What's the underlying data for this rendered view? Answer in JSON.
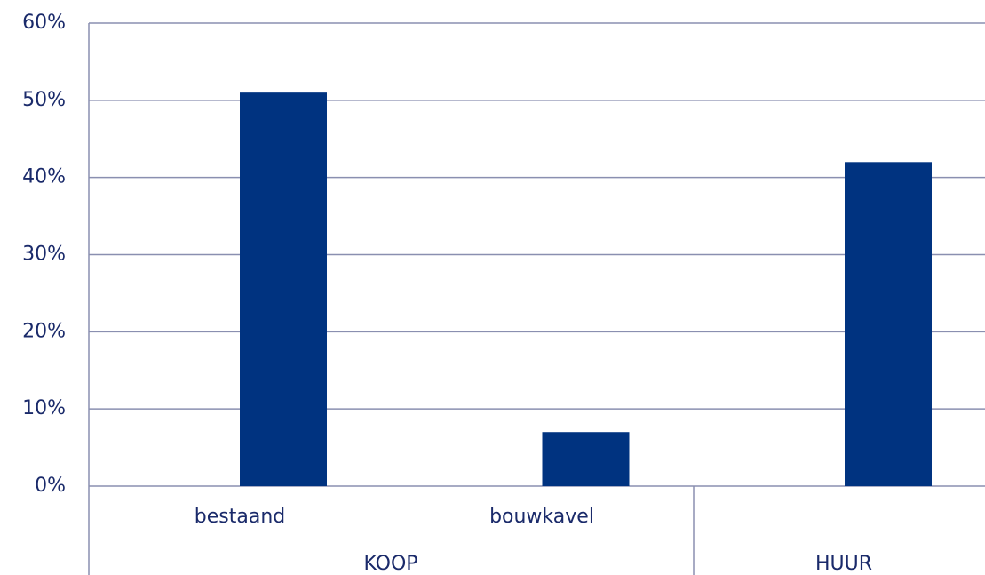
{
  "chart_data": {
    "type": "bar",
    "categories": [
      "bestaand",
      "bouwkavel",
      null
    ],
    "groups": [
      "KOOP",
      "HUUR"
    ],
    "values": [
      51,
      7,
      42
    ],
    "color": "#003380",
    "ylim": [
      0,
      60
    ],
    "yticks": [
      {
        "value": 0,
        "label": "0%"
      },
      {
        "value": 10,
        "label": "10%"
      },
      {
        "value": 20,
        "label": "20%"
      },
      {
        "value": 30,
        "label": "30%"
      },
      {
        "value": 40,
        "label": "40%"
      },
      {
        "value": 50,
        "label": "50%"
      },
      {
        "value": 60,
        "label": "60%"
      }
    ],
    "grid": true
  }
}
